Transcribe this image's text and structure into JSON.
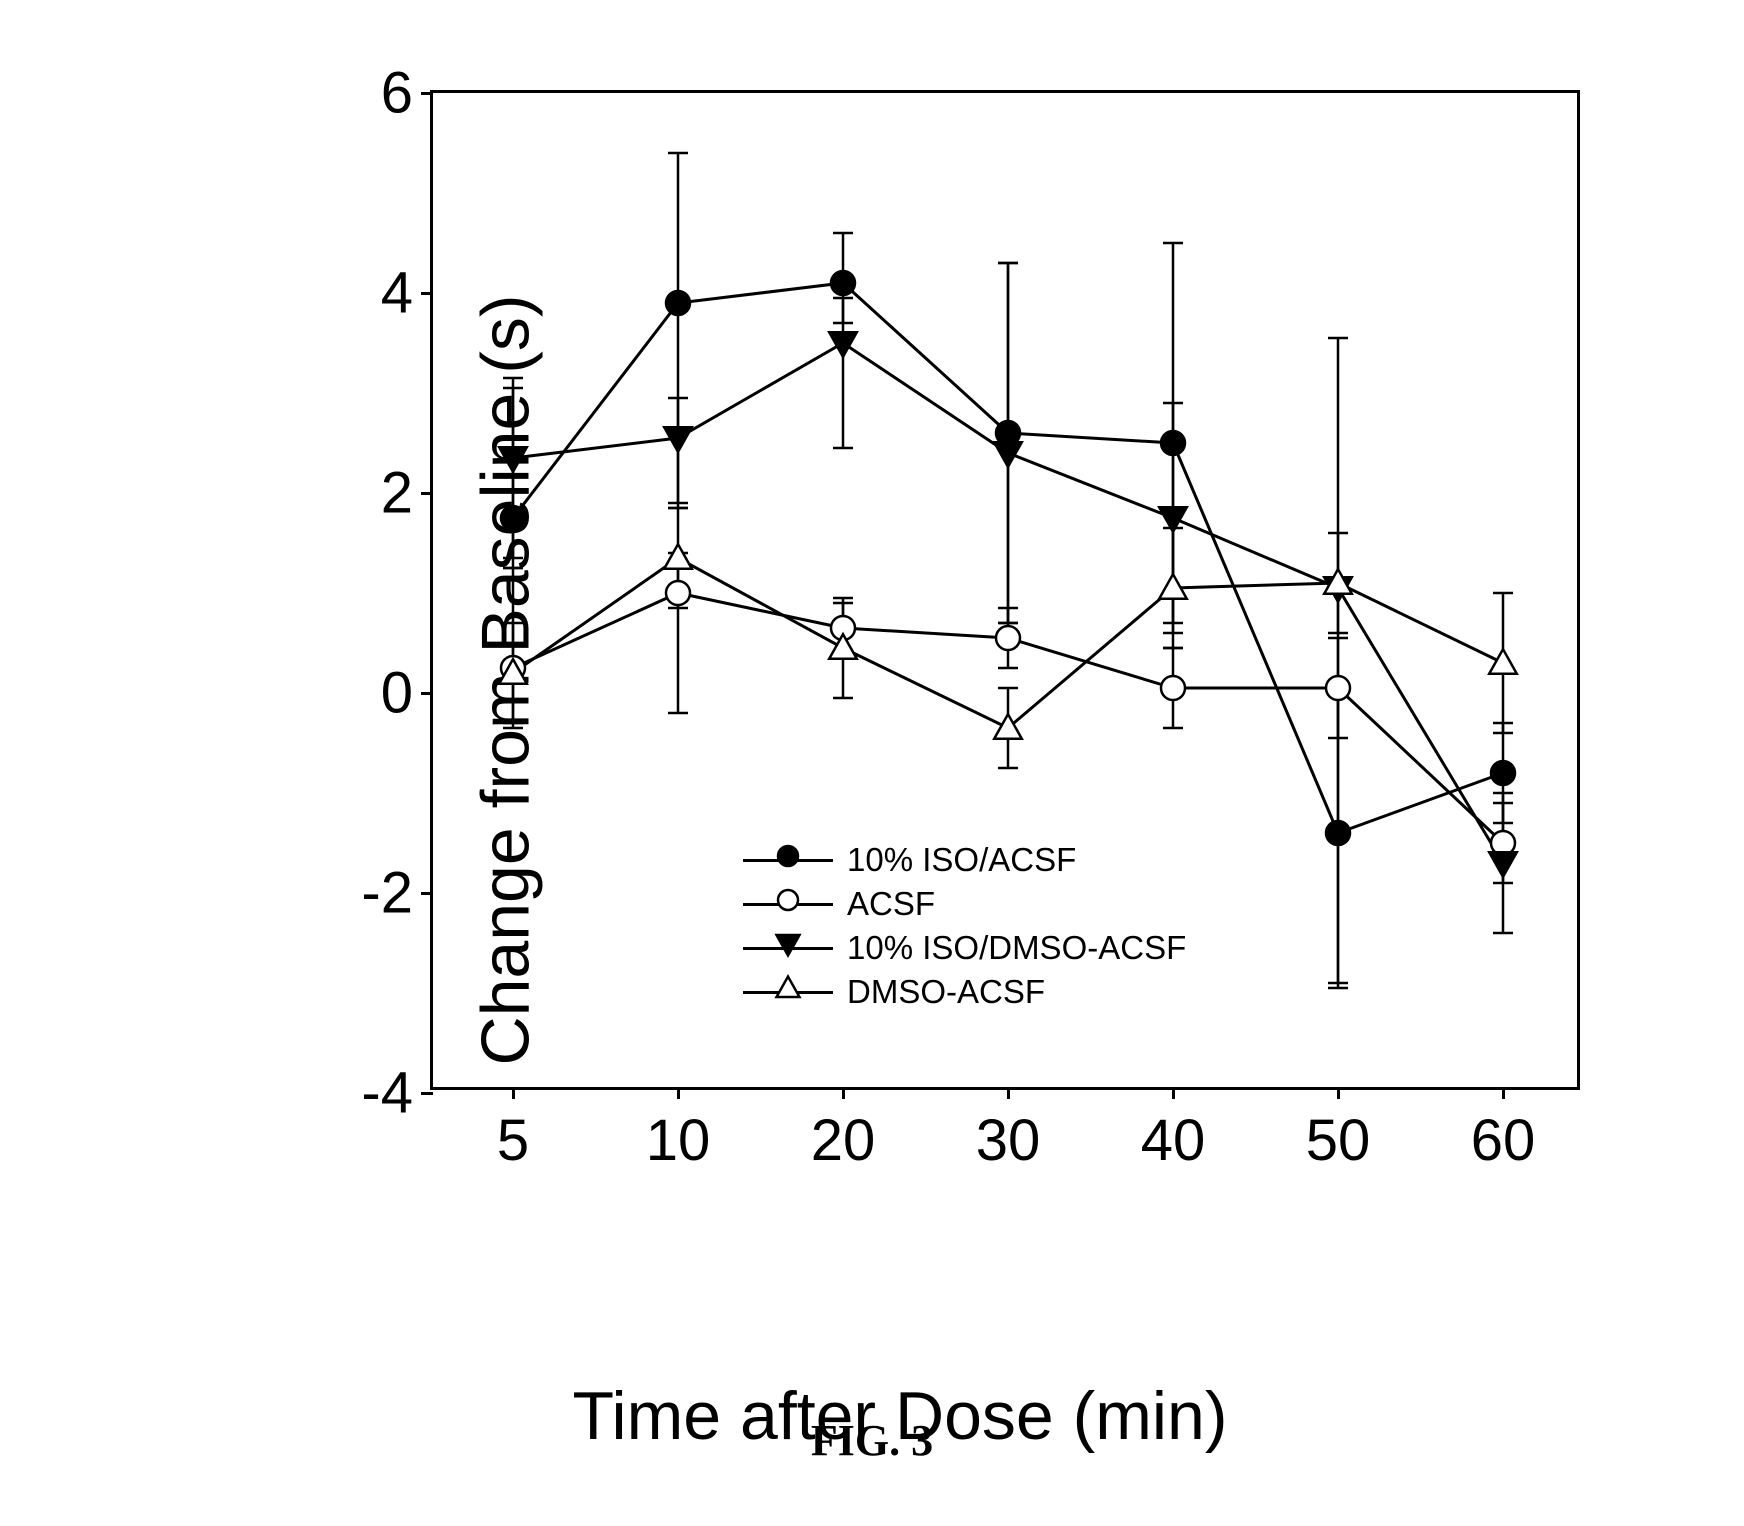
{
  "chart": {
    "type": "line",
    "caption": "FIG. 3",
    "xlabel": "Time after Dose (min)",
    "ylabel": "Change from Baseline (s)",
    "label_fontsize": 68,
    "tick_fontsize": 58,
    "legend_fontsize": 33,
    "background_color": "#ffffff",
    "border_color": "#000000",
    "line_color": "#000000",
    "line_width": 3,
    "xlim": [
      0,
      7
    ],
    "ylim": [
      -4,
      6
    ],
    "x_categories": [
      "5",
      "10",
      "20",
      "30",
      "40",
      "50",
      "60"
    ],
    "y_ticks": [
      -4,
      -2,
      0,
      2,
      4,
      6
    ],
    "marker_size": 12,
    "error_cap_width": 20,
    "series": [
      {
        "name": "10% ISO/ACSF",
        "marker": "circle",
        "fill": "#000000",
        "values": [
          1.75,
          3.9,
          4.1,
          2.6,
          2.5,
          -1.4,
          -0.8
        ],
        "err_low": [
          0.5,
          2.0,
          0.4,
          1.9,
          1.9,
          1.5,
          0.5
        ],
        "err_high": [
          1.4,
          1.5,
          0.5,
          1.7,
          2.0,
          1.5,
          0.5
        ]
      },
      {
        "name": "ACSF",
        "marker": "circle",
        "fill": "#ffffff",
        "values": [
          0.25,
          1.0,
          0.65,
          0.55,
          0.05,
          0.05,
          -1.5
        ],
        "err_low": [
          0.6,
          1.2,
          0.25,
          0.3,
          0.4,
          0.5,
          0.4
        ],
        "err_high": [
          1.0,
          0.4,
          0.25,
          0.3,
          0.4,
          0.5,
          0.4
        ]
      },
      {
        "name": "10% ISO/DMSO-ACSF",
        "marker": "triangle-down",
        "fill": "#000000",
        "values": [
          2.35,
          2.55,
          3.5,
          2.4,
          1.75,
          1.05,
          -1.7
        ],
        "err_low": [
          1.0,
          0.7,
          1.05,
          1.7,
          1.05,
          4.0,
          0.7
        ],
        "err_high": [
          0.7,
          0.4,
          0.45,
          1.9,
          1.15,
          2.5,
          0.7
        ]
      },
      {
        "name": "DMSO-ACSF",
        "marker": "triangle-up",
        "fill": "#ffffff",
        "values": [
          0.2,
          1.35,
          0.45,
          -0.35,
          1.05,
          1.1,
          0.3
        ],
        "err_low": [
          0.5,
          0.5,
          0.5,
          0.4,
          0.6,
          0.5,
          0.7
        ],
        "err_high": [
          0.5,
          0.5,
          0.5,
          0.4,
          0.6,
          0.5,
          0.7
        ]
      }
    ]
  }
}
